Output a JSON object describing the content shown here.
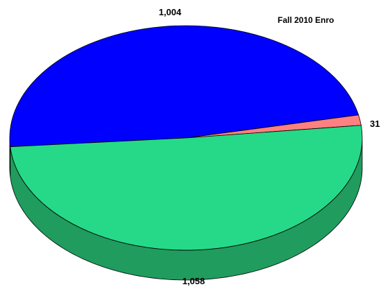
{
  "chart_data": {
    "type": "pie",
    "title": "Fall 2010 Enro",
    "slices": [
      {
        "label": "1,004",
        "value": 1004,
        "color": "#0000ff",
        "side_color": "#0000b0"
      },
      {
        "label": "31",
        "value": 31,
        "color": "#ff8080",
        "side_color": "#c06060"
      },
      {
        "label": "1,058",
        "value": 1058,
        "color": "#26d988",
        "side_color": "#1f9c5e"
      }
    ],
    "legend": false,
    "three_d": true
  }
}
